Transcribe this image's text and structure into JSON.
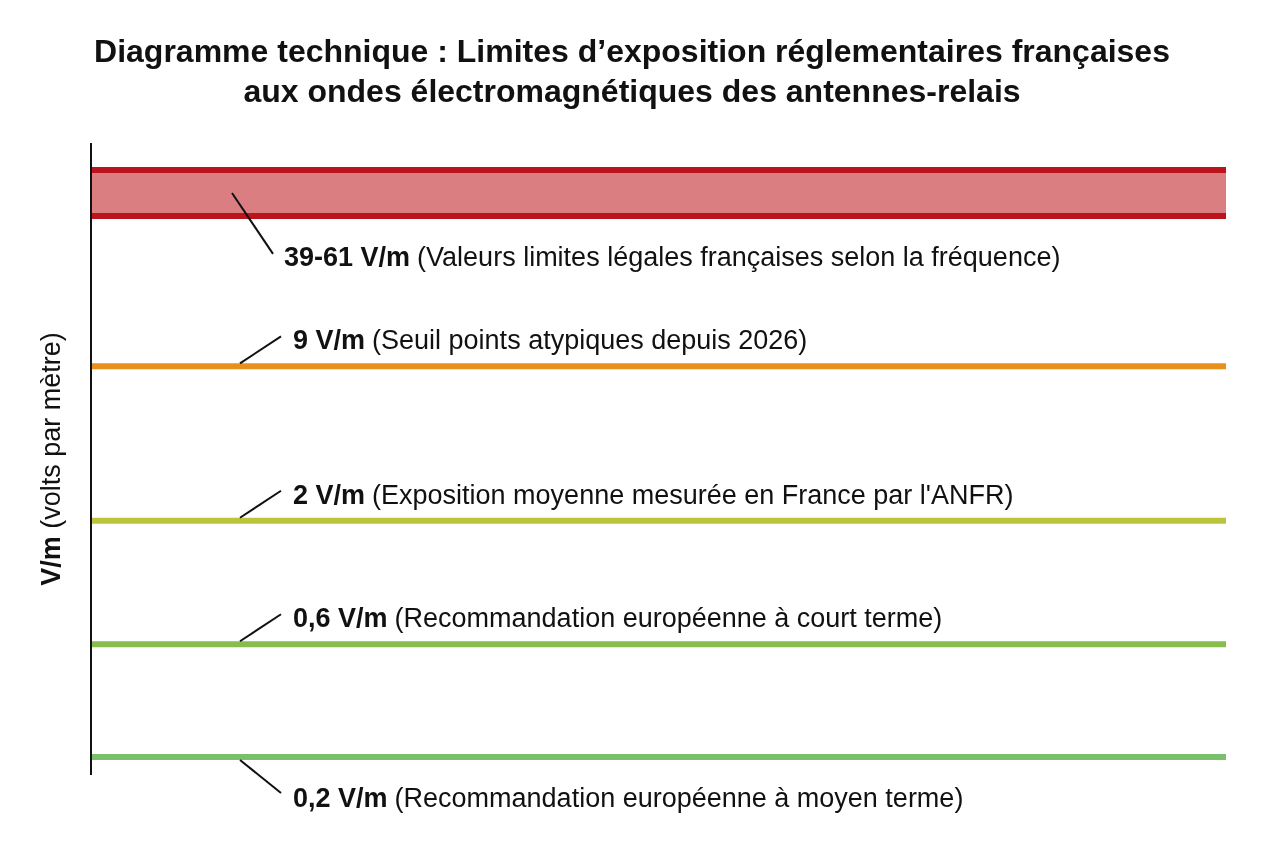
{
  "chart_data": {
    "type": "other",
    "title": "Diagramme technique : Limites d’exposition réglementaires françaises aux ondes électromagnétiques des antennes-relais",
    "ylabel": "V/m (volts par mètre)",
    "categories": [
      null,
      "(Valeurs limites légales françaises selon la fréquence)",
      "(Seuil points atypiques depuis 2026)",
      "(Exposition moyenne mesurée en France par l'ANFR)",
      "(Recommandation européenne à court terme)",
      "(Recommandation européenne à moyen terme)"
    ],
    "values": [
      39,
      61,
      9,
      2,
      0.6,
      0.2
    ],
    "value_labels": [
      "39-",
      "61 V/m",
      "9 V/m",
      "2 V/m",
      "0,6 V/m",
      "0,2 V/m"
    ],
    "colors": [
      "#bb141c",
      "#bb141c",
      "#e8901c",
      "#bcc43c",
      "#86bd4e",
      "#79c06a"
    ]
  }
}
